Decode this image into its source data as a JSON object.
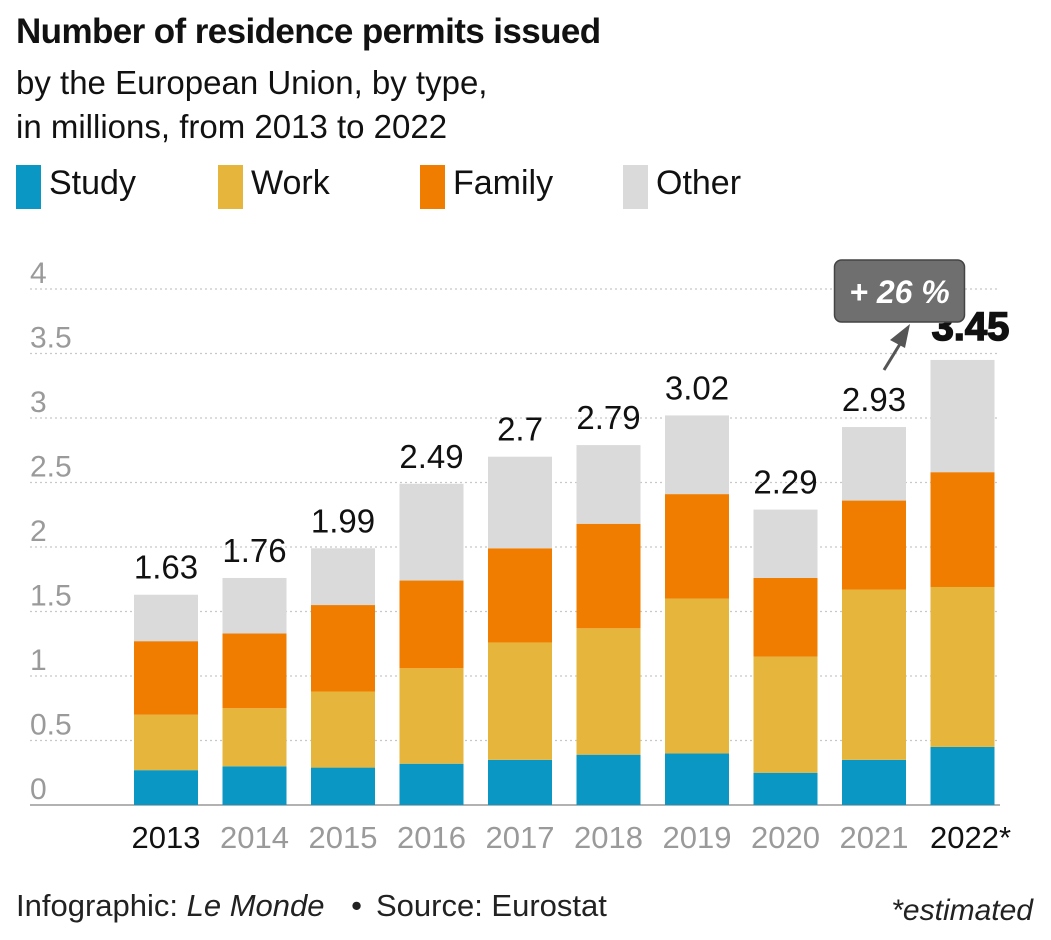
{
  "chart_data": {
    "type": "bar",
    "stacked": true,
    "title": "Number of residence permits issued",
    "subtitle_line1": "by the European Union, by type,",
    "subtitle_line2": "in millions, from 2013 to 2022",
    "categories": [
      "2013",
      "2014",
      "2015",
      "2016",
      "2017",
      "2018",
      "2019",
      "2020",
      "2021",
      "2022*"
    ],
    "totals": [
      1.63,
      1.76,
      1.99,
      2.49,
      2.7,
      2.79,
      3.02,
      2.29,
      2.93,
      3.45
    ],
    "total_labels": [
      "1.63",
      "1.76",
      "1.99",
      "2.49",
      "2.7",
      "2.79",
      "3.02",
      "2.29",
      "2.93",
      "3.45"
    ],
    "highlight_index": 9,
    "emphasized_categories": [
      0,
      9
    ],
    "series": [
      {
        "name": "Study",
        "color": "#0a97c4",
        "values": [
          0.27,
          0.3,
          0.29,
          0.32,
          0.35,
          0.39,
          0.4,
          0.25,
          0.35,
          0.45
        ]
      },
      {
        "name": "Work",
        "color": "#e6b53c",
        "values": [
          0.43,
          0.45,
          0.59,
          0.74,
          0.91,
          0.98,
          1.2,
          0.9,
          1.32,
          1.24
        ]
      },
      {
        "name": "Family",
        "color": "#f07d00",
        "values": [
          0.57,
          0.58,
          0.67,
          0.68,
          0.73,
          0.81,
          0.81,
          0.61,
          0.69,
          0.89
        ]
      },
      {
        "name": "Other",
        "color": "#dadada",
        "values": [
          0.36,
          0.43,
          0.44,
          0.75,
          0.71,
          0.61,
          0.61,
          0.53,
          0.57,
          0.87
        ]
      }
    ],
    "ylim": [
      0,
      4
    ],
    "yticks": [
      0,
      0.5,
      1,
      1.5,
      2,
      2.5,
      3,
      3.5,
      4
    ],
    "ytick_labels": [
      "0",
      "0.5",
      "1",
      "1.5",
      "2",
      "2.5",
      "3",
      "3.5",
      "4"
    ],
    "grid": true,
    "annotation": {
      "text": "+ 26 %",
      "target_index": 9
    }
  },
  "legend": {
    "items": [
      {
        "label": "Study",
        "color": "#0a97c4"
      },
      {
        "label": "Work",
        "color": "#e6b53c"
      },
      {
        "label": "Family",
        "color": "#f07d00"
      },
      {
        "label": "Other",
        "color": "#dadada"
      }
    ]
  },
  "footer": {
    "credit_prefix": "Infographic: ",
    "credit_name": "Le Monde",
    "separator": "•",
    "source": "Source: Eurostat",
    "note": "*estimated"
  }
}
